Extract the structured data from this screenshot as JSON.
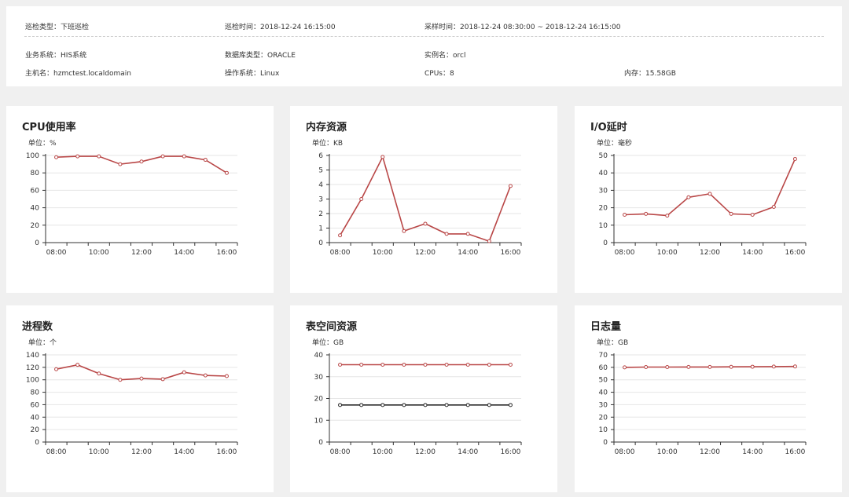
{
  "info": {
    "row1": [
      {
        "label": "巡检类型：",
        "value": "下班巡检"
      },
      {
        "label": "巡检时间：",
        "value": "2018-12-24 16:15:00"
      },
      {
        "label": "采样时间：",
        "value": "2018-12-24 08:30:00 ~ 2018-12-24 16:15:00"
      }
    ],
    "row2": [
      {
        "label": "业务系统：",
        "value": "HIS系统"
      },
      {
        "label": "数据库类型：",
        "value": "ORACLE"
      },
      {
        "label": "实例名：",
        "value": "orcl"
      }
    ],
    "row3": [
      {
        "label": "主机名：",
        "value": "hzmctest.localdomain"
      },
      {
        "label": "操作系统：",
        "value": "Linux"
      },
      {
        "label": "CPUs：",
        "value": "8"
      },
      {
        "label": "内存：",
        "value": "15.58GB"
      }
    ]
  },
  "colors": {
    "series_red": "#b94747",
    "series_dark": "#2a2a2a",
    "grid": "#e6e6e6",
    "axis": "#333333"
  },
  "chart_data": [
    {
      "type": "line",
      "title": "CPU使用率",
      "unit": "单位：%",
      "x": [
        "08:00",
        "09:00",
        "10:00",
        "11:00",
        "12:00",
        "13:00",
        "14:00",
        "15:00",
        "16:00"
      ],
      "xticks": [
        "08:00",
        "10:00",
        "12:00",
        "14:00",
        "16:00"
      ],
      "ylim": [
        0,
        100
      ],
      "yticks": [
        0,
        20,
        40,
        60,
        80,
        100
      ],
      "series": [
        {
          "color": "#b94747",
          "values": [
            98,
            99,
            99,
            90,
            93,
            99,
            99,
            95,
            80
          ]
        }
      ]
    },
    {
      "type": "line",
      "title": "内存资源",
      "unit": "单位：KB",
      "x": [
        "08:00",
        "09:00",
        "10:00",
        "11:00",
        "12:00",
        "13:00",
        "14:00",
        "15:00",
        "16:00"
      ],
      "xticks": [
        "08:00",
        "10:00",
        "12:00",
        "14:00",
        "16:00"
      ],
      "ylim": [
        0,
        6
      ],
      "yticks": [
        0,
        1,
        2,
        3,
        4,
        5,
        6
      ],
      "series": [
        {
          "color": "#b94747",
          "values": [
            0.5,
            3.0,
            5.9,
            0.8,
            1.3,
            0.6,
            0.6,
            0.1,
            3.9
          ]
        }
      ]
    },
    {
      "type": "line",
      "title": "I/O延时",
      "unit": "单位：毫秒",
      "x": [
        "08:00",
        "09:00",
        "10:00",
        "11:00",
        "12:00",
        "13:00",
        "14:00",
        "15:00",
        "16:00"
      ],
      "xticks": [
        "08:00",
        "10:00",
        "12:00",
        "14:00",
        "16:00"
      ],
      "ylim": [
        0,
        50
      ],
      "yticks": [
        0,
        10,
        20,
        30,
        40,
        50
      ],
      "series": [
        {
          "color": "#b94747",
          "values": [
            16,
            16.5,
            15.5,
            26,
            28,
            16.5,
            16,
            20.5,
            48
          ]
        }
      ]
    },
    {
      "type": "line",
      "title": "进程数",
      "unit": "单位：个",
      "x": [
        "08:00",
        "09:00",
        "10:00",
        "11:00",
        "12:00",
        "13:00",
        "14:00",
        "15:00",
        "16:00"
      ],
      "xticks": [
        "08:00",
        "10:00",
        "12:00",
        "14:00",
        "16:00"
      ],
      "ylim": [
        0,
        140
      ],
      "yticks": [
        0,
        20,
        40,
        60,
        80,
        100,
        120,
        140
      ],
      "series": [
        {
          "color": "#b94747",
          "values": [
            117,
            124,
            110,
            100,
            102,
            101,
            112,
            107,
            106
          ]
        }
      ]
    },
    {
      "type": "line",
      "title": "表空间资源",
      "unit": "单位：GB",
      "x": [
        "08:00",
        "09:00",
        "10:00",
        "11:00",
        "12:00",
        "13:00",
        "14:00",
        "15:00",
        "16:00"
      ],
      "xticks": [
        "08:00",
        "10:00",
        "12:00",
        "14:00",
        "16:00"
      ],
      "ylim": [
        0,
        40
      ],
      "yticks": [
        0,
        10,
        20,
        30,
        40
      ],
      "series": [
        {
          "color": "#b94747",
          "values": [
            35.5,
            35.5,
            35.5,
            35.5,
            35.5,
            35.5,
            35.5,
            35.5,
            35.5
          ]
        },
        {
          "color": "#2a2a2a",
          "values": [
            17,
            17,
            17,
            17,
            17,
            17,
            17,
            17,
            17
          ]
        }
      ]
    },
    {
      "type": "line",
      "title": "日志量",
      "unit": "单位：GB",
      "x": [
        "08:00",
        "09:00",
        "10:00",
        "11:00",
        "12:00",
        "13:00",
        "14:00",
        "15:00",
        "16:00"
      ],
      "xticks": [
        "08:00",
        "10:00",
        "12:00",
        "14:00",
        "16:00"
      ],
      "ylim": [
        0,
        70
      ],
      "yticks": [
        0,
        10,
        20,
        30,
        40,
        50,
        60,
        70
      ],
      "series": [
        {
          "color": "#b94747",
          "values": [
            60,
            60.2,
            60.2,
            60.3,
            60.3,
            60.4,
            60.5,
            60.6,
            60.7
          ]
        }
      ]
    }
  ]
}
